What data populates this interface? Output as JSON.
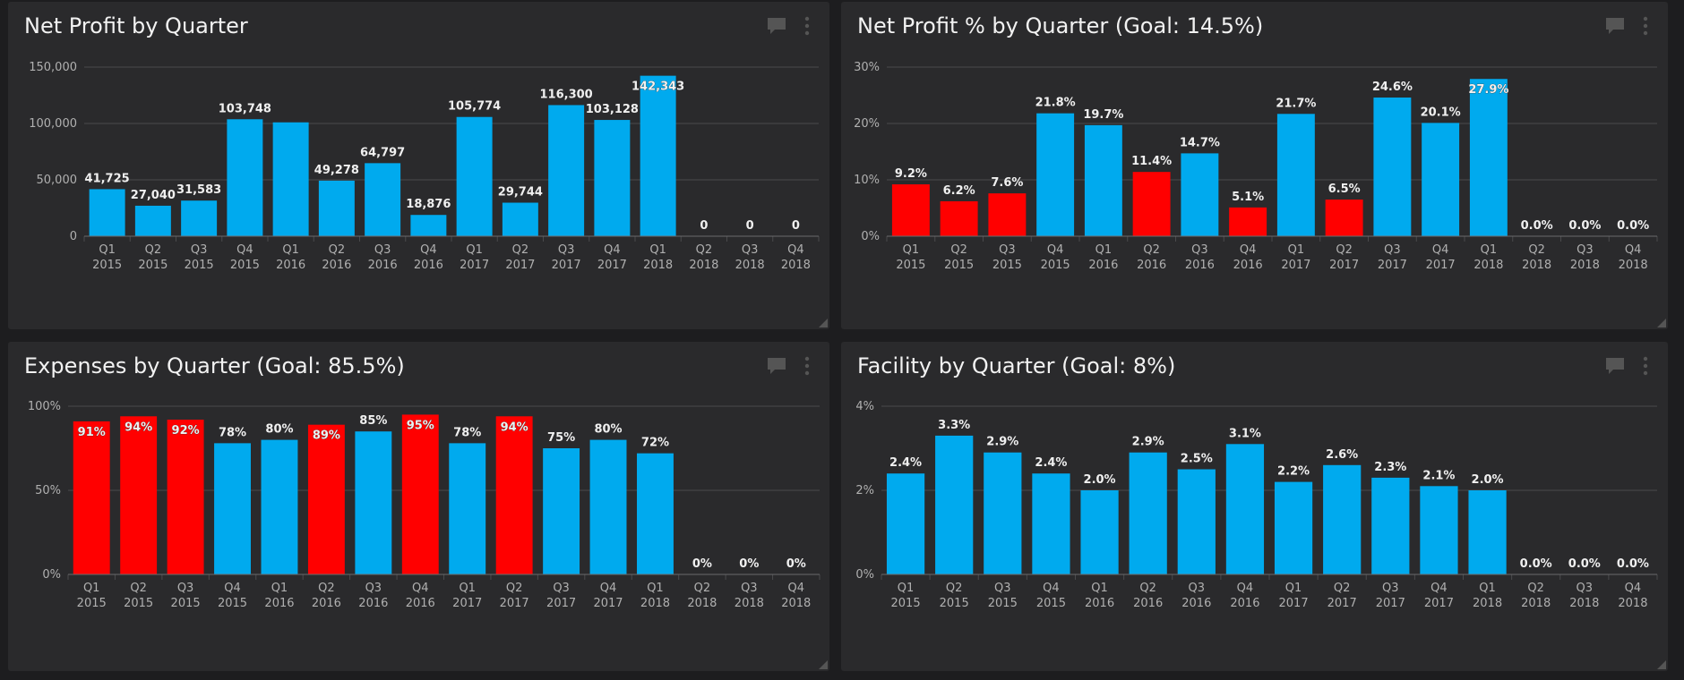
{
  "colors": {
    "background": "#1d1d1f",
    "panel": "#2a2a2c",
    "good": "#00aaee",
    "bad": "#ff0000",
    "grid": "#4a4a4c",
    "axis_text": "#b0b0b0",
    "label_text": "#f0f0f0"
  },
  "icons": {
    "comment": "comment-icon",
    "more": "more-vertical-icon",
    "resize": "resize-corner-icon"
  },
  "panels": [
    {
      "title": "Net Profit by Quarter",
      "chart_data": {
        "type": "bar",
        "title": "Net Profit by Quarter",
        "categories": [
          [
            "Q1",
            "2015"
          ],
          [
            "Q2",
            "2015"
          ],
          [
            "Q3",
            "2015"
          ],
          [
            "Q4",
            "2015"
          ],
          [
            "Q1",
            "2016"
          ],
          [
            "Q2",
            "2016"
          ],
          [
            "Q3",
            "2016"
          ],
          [
            "Q4",
            "2016"
          ],
          [
            "Q1",
            "2017"
          ],
          [
            "Q2",
            "2017"
          ],
          [
            "Q3",
            "2017"
          ],
          [
            "Q4",
            "2017"
          ],
          [
            "Q1",
            "2018"
          ],
          [
            "Q2",
            "2018"
          ],
          [
            "Q3",
            "2018"
          ],
          [
            "Q4",
            "2018"
          ]
        ],
        "values": [
          41725,
          27040,
          31583,
          103748,
          101000,
          49278,
          64797,
          18876,
          105774,
          29744,
          116300,
          103128,
          142343,
          0,
          0,
          0
        ],
        "labels": [
          "41,725",
          "27,040",
          "31,583",
          "103,748",
          "",
          "49,278",
          "64,797",
          "18,876",
          "105,774",
          "29,744",
          "116,300",
          "103,128",
          "142,343",
          "0",
          "0",
          "0"
        ],
        "label_inside": [
          false,
          false,
          false,
          false,
          false,
          false,
          false,
          false,
          false,
          false,
          false,
          false,
          true,
          false,
          false,
          false
        ],
        "status": [
          "good",
          "good",
          "good",
          "good",
          "good",
          "good",
          "good",
          "good",
          "good",
          "good",
          "good",
          "good",
          "good",
          "good",
          "good",
          "good"
        ],
        "yticks": [
          0,
          50000,
          100000,
          150000
        ],
        "ytick_labels": [
          "0",
          "50,000",
          "100,000",
          "150,000"
        ],
        "ylim": [
          0,
          150000
        ],
        "xlabel": "",
        "ylabel": "",
        "grid": true
      }
    },
    {
      "title": "Net Profit % by Quarter (Goal: 14.5%)",
      "chart_data": {
        "type": "bar",
        "title": "Net Profit % by Quarter (Goal: 14.5%)",
        "categories": [
          [
            "Q1",
            "2015"
          ],
          [
            "Q2",
            "2015"
          ],
          [
            "Q3",
            "2015"
          ],
          [
            "Q4",
            "2015"
          ],
          [
            "Q1",
            "2016"
          ],
          [
            "Q2",
            "2016"
          ],
          [
            "Q3",
            "2016"
          ],
          [
            "Q4",
            "2016"
          ],
          [
            "Q1",
            "2017"
          ],
          [
            "Q2",
            "2017"
          ],
          [
            "Q3",
            "2017"
          ],
          [
            "Q4",
            "2017"
          ],
          [
            "Q1",
            "2018"
          ],
          [
            "Q2",
            "2018"
          ],
          [
            "Q3",
            "2018"
          ],
          [
            "Q4",
            "2018"
          ]
        ],
        "values": [
          9.2,
          6.2,
          7.6,
          21.8,
          19.7,
          11.4,
          14.7,
          5.1,
          21.7,
          6.5,
          24.6,
          20.1,
          27.9,
          0,
          0,
          0
        ],
        "labels": [
          "9.2%",
          "6.2%",
          "7.6%",
          "21.8%",
          "19.7%",
          "11.4%",
          "14.7%",
          "5.1%",
          "21.7%",
          "6.5%",
          "24.6%",
          "20.1%",
          "27.9%",
          "0.0%",
          "0.0%",
          "0.0%"
        ],
        "label_inside": [
          false,
          false,
          false,
          false,
          false,
          false,
          false,
          false,
          false,
          false,
          false,
          false,
          true,
          false,
          false,
          false
        ],
        "status": [
          "bad",
          "bad",
          "bad",
          "good",
          "good",
          "bad",
          "good",
          "bad",
          "good",
          "bad",
          "good",
          "good",
          "good",
          "good",
          "good",
          "good"
        ],
        "yticks": [
          0,
          10,
          20,
          30
        ],
        "ytick_labels": [
          "0%",
          "10%",
          "20%",
          "30%"
        ],
        "ylim": [
          0,
          30
        ],
        "xlabel": "",
        "ylabel": "",
        "grid": true
      }
    },
    {
      "title": "Expenses by Quarter (Goal: 85.5%)",
      "chart_data": {
        "type": "bar",
        "title": "Expenses by Quarter (Goal: 85.5%)",
        "categories": [
          [
            "Q1",
            "2015"
          ],
          [
            "Q2",
            "2015"
          ],
          [
            "Q3",
            "2015"
          ],
          [
            "Q4",
            "2015"
          ],
          [
            "Q1",
            "2016"
          ],
          [
            "Q2",
            "2016"
          ],
          [
            "Q3",
            "2016"
          ],
          [
            "Q4",
            "2016"
          ],
          [
            "Q1",
            "2017"
          ],
          [
            "Q2",
            "2017"
          ],
          [
            "Q3",
            "2017"
          ],
          [
            "Q4",
            "2017"
          ],
          [
            "Q1",
            "2018"
          ],
          [
            "Q2",
            "2018"
          ],
          [
            "Q3",
            "2018"
          ],
          [
            "Q4",
            "2018"
          ]
        ],
        "values": [
          91,
          94,
          92,
          78,
          80,
          89,
          85,
          95,
          78,
          94,
          75,
          80,
          72,
          0,
          0,
          0
        ],
        "labels": [
          "91%",
          "94%",
          "92%",
          "78%",
          "80%",
          "89%",
          "85%",
          "95%",
          "78%",
          "94%",
          "75%",
          "80%",
          "72%",
          "0%",
          "0%",
          "0%"
        ],
        "label_inside": [
          true,
          true,
          true,
          false,
          false,
          true,
          false,
          true,
          false,
          true,
          false,
          false,
          false,
          false,
          false,
          false
        ],
        "status": [
          "bad",
          "bad",
          "bad",
          "good",
          "good",
          "bad",
          "good",
          "bad",
          "good",
          "bad",
          "good",
          "good",
          "good",
          "good",
          "good",
          "good"
        ],
        "yticks": [
          0,
          50,
          100
        ],
        "ytick_labels": [
          "0%",
          "50%",
          "100%"
        ],
        "ylim": [
          0,
          100
        ],
        "xlabel": "",
        "ylabel": "",
        "grid": true
      }
    },
    {
      "title": "Facility by Quarter (Goal: 8%)",
      "chart_data": {
        "type": "bar",
        "title": "Facility by Quarter (Goal: 8%)",
        "categories": [
          [
            "Q1",
            "2015"
          ],
          [
            "Q2",
            "2015"
          ],
          [
            "Q3",
            "2015"
          ],
          [
            "Q4",
            "2015"
          ],
          [
            "Q1",
            "2016"
          ],
          [
            "Q2",
            "2016"
          ],
          [
            "Q3",
            "2016"
          ],
          [
            "Q4",
            "2016"
          ],
          [
            "Q1",
            "2017"
          ],
          [
            "Q2",
            "2017"
          ],
          [
            "Q3",
            "2017"
          ],
          [
            "Q4",
            "2017"
          ],
          [
            "Q1",
            "2018"
          ],
          [
            "Q2",
            "2018"
          ],
          [
            "Q3",
            "2018"
          ],
          [
            "Q4",
            "2018"
          ]
        ],
        "values": [
          2.4,
          3.3,
          2.9,
          2.4,
          2.0,
          2.9,
          2.5,
          3.1,
          2.2,
          2.6,
          2.3,
          2.1,
          2.0,
          0,
          0,
          0
        ],
        "labels": [
          "2.4%",
          "3.3%",
          "2.9%",
          "2.4%",
          "2.0%",
          "2.9%",
          "2.5%",
          "3.1%",
          "2.2%",
          "2.6%",
          "2.3%",
          "2.1%",
          "2.0%",
          "0.0%",
          "0.0%",
          "0.0%"
        ],
        "label_inside": [
          false,
          false,
          false,
          false,
          false,
          false,
          false,
          false,
          false,
          false,
          false,
          false,
          false,
          false,
          false,
          false
        ],
        "status": [
          "good",
          "good",
          "good",
          "good",
          "good",
          "good",
          "good",
          "good",
          "good",
          "good",
          "good",
          "good",
          "good",
          "good",
          "good",
          "good"
        ],
        "yticks": [
          0,
          2,
          4
        ],
        "ytick_labels": [
          "0%",
          "2%",
          "4%"
        ],
        "ylim": [
          0,
          4
        ],
        "xlabel": "",
        "ylabel": "",
        "grid": true
      }
    }
  ]
}
